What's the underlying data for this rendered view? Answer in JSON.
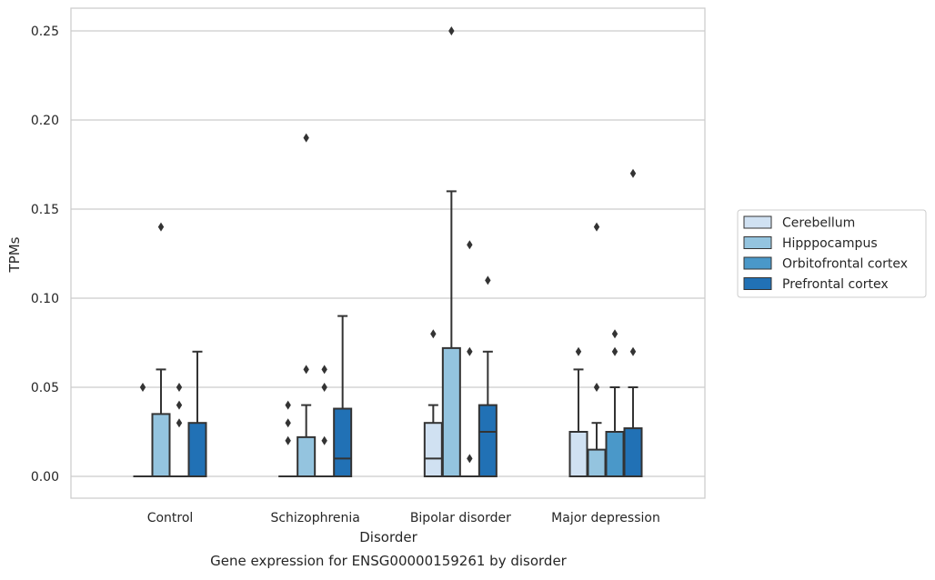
{
  "chart_data": {
    "type": "box",
    "title": "",
    "caption": "Gene expression for ENSG00000159261 by disorder",
    "xlabel": "Disorder",
    "ylabel": "TPMs",
    "ylim": [
      -0.012,
      0.263
    ],
    "yticks": [
      "0.00",
      "0.05",
      "0.10",
      "0.15",
      "0.20",
      "0.25"
    ],
    "ytick_values": [
      0,
      0.05,
      0.1,
      0.15,
      0.2,
      0.25
    ],
    "grid": "horizontal",
    "legend_position": "right",
    "categories": [
      "Control",
      "Schizophrenia",
      "Bipolar disorder",
      "Major depression"
    ],
    "series": [
      {
        "name": "Cerebellum",
        "color": "#d0e1f2",
        "boxes": [
          {
            "q1": 0,
            "median": 0,
            "q3": 0,
            "whisker_low": 0,
            "whisker_high": 0,
            "outliers": [
              0.05
            ]
          },
          {
            "q1": 0,
            "median": 0,
            "q3": 0,
            "whisker_low": 0,
            "whisker_high": 0,
            "outliers": [
              0.02,
              0.03,
              0.04
            ]
          },
          {
            "q1": 0,
            "median": 0.01,
            "q3": 0.03,
            "whisker_low": 0,
            "whisker_high": 0.04,
            "outliers": [
              0.08
            ]
          },
          {
            "q1": 0,
            "median": 0,
            "q3": 0.025,
            "whisker_low": 0,
            "whisker_high": 0.06,
            "outliers": [
              0.07
            ]
          }
        ]
      },
      {
        "name": "Hipppocampus",
        "color": "#94c4df",
        "boxes": [
          {
            "q1": 0,
            "median": 0,
            "q3": 0.035,
            "whisker_low": 0,
            "whisker_high": 0.06,
            "outliers": [
              0.14
            ]
          },
          {
            "q1": 0,
            "median": 0,
            "q3": 0.022,
            "whisker_low": 0,
            "whisker_high": 0.04,
            "outliers": [
              0.06,
              0.19
            ]
          },
          {
            "q1": 0,
            "median": 0,
            "q3": 0.072,
            "whisker_low": 0,
            "whisker_high": 0.16,
            "outliers": [
              0.25
            ]
          },
          {
            "q1": 0,
            "median": 0,
            "q3": 0.015,
            "whisker_low": 0,
            "whisker_high": 0.03,
            "outliers": [
              0.05,
              0.14
            ]
          }
        ]
      },
      {
        "name": "Orbitofrontal cortex",
        "color": "#4a98c9",
        "boxes": [
          {
            "q1": 0,
            "median": 0,
            "q3": 0,
            "whisker_low": 0,
            "whisker_high": 0,
            "outliers": [
              0.03,
              0.04,
              0.05
            ]
          },
          {
            "q1": 0,
            "median": 0,
            "q3": 0,
            "whisker_low": 0,
            "whisker_high": 0,
            "outliers": [
              0.02,
              0.05,
              0.06
            ]
          },
          {
            "q1": 0,
            "median": 0,
            "q3": 0,
            "whisker_low": 0,
            "whisker_high": 0,
            "outliers": [
              0.01,
              0.07,
              0.13
            ]
          },
          {
            "q1": 0,
            "median": 0,
            "q3": 0.025,
            "whisker_low": 0,
            "whisker_high": 0.05,
            "outliers": [
              0.07,
              0.08
            ]
          }
        ]
      },
      {
        "name": "Prefrontal cortex",
        "color": "#2171b5",
        "boxes": [
          {
            "q1": 0,
            "median": 0,
            "q3": 0.03,
            "whisker_low": 0,
            "whisker_high": 0.07,
            "outliers": []
          },
          {
            "q1": 0,
            "median": 0.01,
            "q3": 0.038,
            "whisker_low": 0,
            "whisker_high": 0.09,
            "outliers": []
          },
          {
            "q1": 0,
            "median": 0.025,
            "q3": 0.04,
            "whisker_low": 0,
            "whisker_high": 0.07,
            "outliers": [
              0.11
            ]
          },
          {
            "q1": 0,
            "median": 0,
            "q3": 0.027,
            "whisker_low": 0,
            "whisker_high": 0.05,
            "outliers": [
              0.07,
              0.17
            ]
          }
        ]
      }
    ]
  }
}
